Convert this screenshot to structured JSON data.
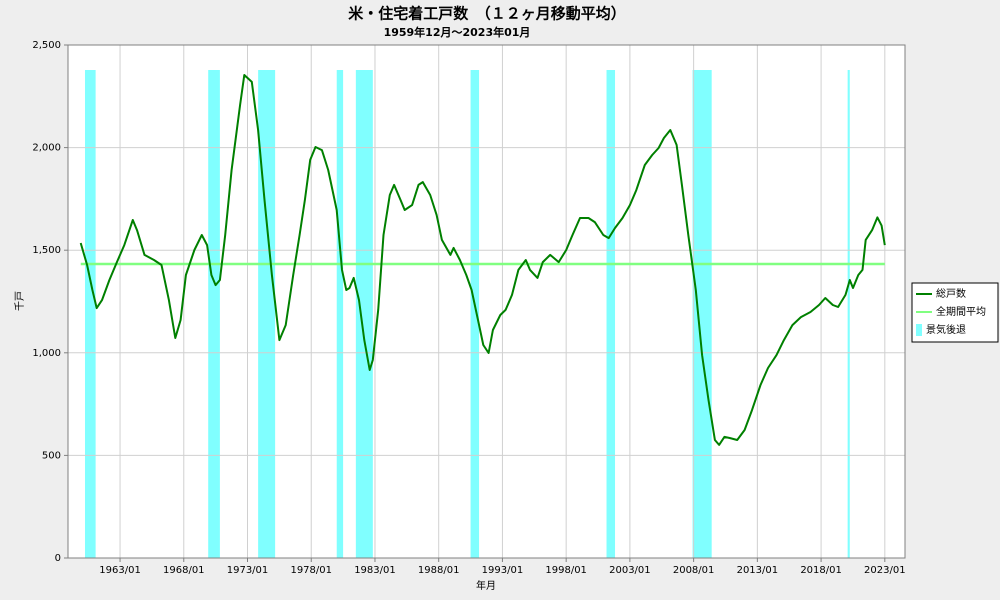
{
  "chart_data": {
    "type": "line",
    "title": "米・住宅着工戸数　（１２ヶ月移動平均）",
    "subtitle": "1959年12月～2023年01月",
    "xlabel": "年月",
    "ylabel": "千戸",
    "xlim": [
      "1958/12",
      "2024/08"
    ],
    "xticks": [
      "1963/01",
      "1968/01",
      "1973/01",
      "1978/01",
      "1983/01",
      "1988/01",
      "1993/01",
      "1998/01",
      "2003/01",
      "2008/01",
      "2013/01",
      "2018/01",
      "2023/01"
    ],
    "ylim": [
      0,
      2500
    ],
    "yticks": [
      0,
      500,
      {
        "value": 1000,
        "label": "1,000"
      },
      {
        "value": 1500,
        "label": "1,500"
      },
      {
        "value": 2000,
        "label": "2,000"
      },
      {
        "value": 2500,
        "label": "2,500"
      }
    ],
    "grid": true,
    "legend": "right",
    "x": [
      "1959/12",
      "1960/06",
      "1960/11",
      "1961/03",
      "1961/08",
      "1962/03",
      "1962/10",
      "1963/05",
      "1964/01",
      "1964/05",
      "1964/12",
      "1965/09",
      "1966/04",
      "1966/11",
      "1967/05",
      "1967/10",
      "1968/03",
      "1968/11",
      "1969/06",
      "1969/11",
      "1970/03",
      "1970/07",
      "1970/11",
      "1971/04",
      "1971/10",
      "1972/06",
      "1972/10",
      "1973/05",
      "1973/11",
      "1974/05",
      "1974/12",
      "1975/07",
      "1976/01",
      "1976/08",
      "1977/02",
      "1977/07",
      "1977/12",
      "1978/05",
      "1978/11",
      "1979/05",
      "1980/01",
      "1980/06",
      "1980/10",
      "1981/01",
      "1981/05",
      "1981/10",
      "1982/03",
      "1982/08",
      "1982/11",
      "1983/04",
      "1983/09",
      "1984/03",
      "1984/07",
      "1985/01",
      "1985/05",
      "1985/12",
      "1986/06",
      "1986/10",
      "1987/05",
      "1987/11",
      "1988/04",
      "1988/12",
      "1989/03",
      "1989/09",
      "1990/03",
      "1990/08",
      "1991/02",
      "1991/07",
      "1991/12",
      "1992/04",
      "1992/11",
      "1993/04",
      "1993/10",
      "1994/04",
      "1994/11",
      "1995/03",
      "1995/10",
      "1996/03",
      "1996/10",
      "1997/06",
      "1998/01",
      "1998/07",
      "1999/02",
      "1999/10",
      "2000/04",
      "2000/12",
      "2001/05",
      "2001/11",
      "2002/06",
      "2003/01",
      "2003/07",
      "2004/03",
      "2004/10",
      "2005/04",
      "2005/09",
      "2006/03",
      "2006/09",
      "2007/02",
      "2007/08",
      "2008/03",
      "2008/09",
      "2009/03",
      "2009/09",
      "2010/01",
      "2010/06",
      "2010/11",
      "2011/06",
      "2012/01",
      "2012/08",
      "2013/04",
      "2013/11",
      "2014/07",
      "2015/02",
      "2015/10",
      "2016/06",
      "2017/03",
      "2017/11",
      "2018/05",
      "2018/12",
      "2019/05",
      "2019/12",
      "2020/04",
      "2020/07",
      "2020/12",
      "2021/04",
      "2021/07",
      "2022/01",
      "2022/06",
      "2022/10",
      "2023/01"
    ],
    "series": [
      {
        "name": "総戸数",
        "color": "#008000",
        "values": [
          1535,
          1428,
          1306,
          1218,
          1257,
          1355,
          1442,
          1525,
          1647,
          1598,
          1477,
          1452,
          1428,
          1257,
          1072,
          1160,
          1379,
          1501,
          1574,
          1525,
          1379,
          1330,
          1355,
          1574,
          1891,
          2208,
          2354,
          2320,
          2086,
          1745,
          1379,
          1062,
          1135,
          1379,
          1574,
          1745,
          1940,
          2003,
          1988,
          1891,
          1696,
          1404,
          1306,
          1316,
          1365,
          1257,
          1062,
          916,
          965,
          1209,
          1574,
          1769,
          1818,
          1745,
          1696,
          1720,
          1818,
          1832,
          1769,
          1672,
          1550,
          1477,
          1511,
          1452,
          1379,
          1306,
          1160,
          1038,
          999,
          1111,
          1184,
          1209,
          1282,
          1404,
          1452,
          1404,
          1365,
          1442,
          1477,
          1442,
          1501,
          1574,
          1657,
          1657,
          1637,
          1574,
          1559,
          1608,
          1657,
          1720,
          1793,
          1915,
          1964,
          1998,
          2047,
          2086,
          2013,
          1818,
          1574,
          1306,
          989,
          770,
          575,
          551,
          590,
          585,
          575,
          624,
          721,
          843,
          926,
          989,
          1062,
          1135,
          1174,
          1199,
          1233,
          1267,
          1233,
          1223,
          1282,
          1355,
          1316,
          1379,
          1404,
          1550,
          1598,
          1660,
          1620,
          1525
        ]
      }
    ],
    "average": {
      "name": "全期間平均",
      "value": 1433,
      "color": "#80ff80"
    },
    "recessions": {
      "name": "景気後退",
      "color": "#80ffff",
      "periods": [
        [
          "1960/04",
          "1961/02"
        ],
        [
          "1969/12",
          "1970/11"
        ],
        [
          "1973/11",
          "1975/03"
        ],
        [
          "1980/01",
          "1980/07"
        ],
        [
          "1981/07",
          "1982/11"
        ],
        [
          "1990/07",
          "1991/03"
        ],
        [
          "2001/03",
          "2001/11"
        ],
        [
          "2007/12",
          "2009/06"
        ],
        [
          "2020/02",
          "2020/04"
        ]
      ]
    }
  }
}
